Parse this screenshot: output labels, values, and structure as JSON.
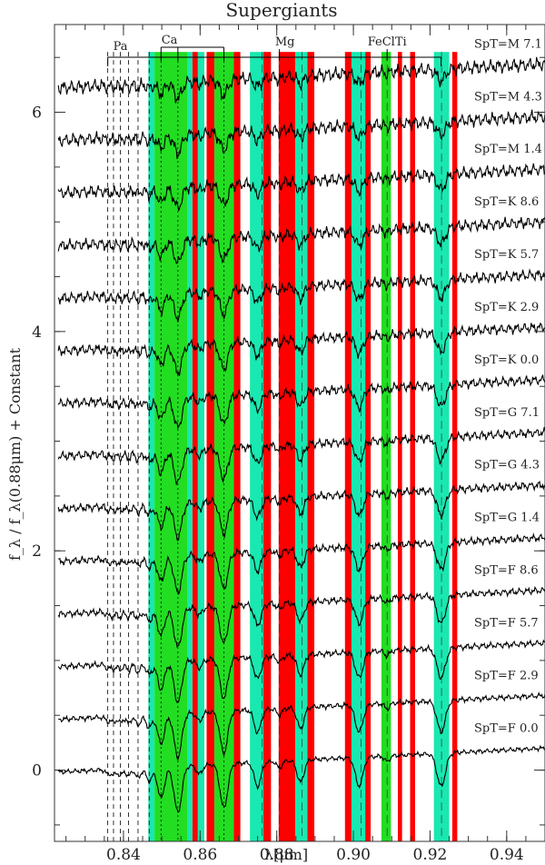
{
  "chart_data": {
    "type": "line",
    "title": "Supergiants",
    "xlabel": "λ[μm]",
    "ylabel": "f_λ / f_λ(0.88μm) + Constant",
    "xlim": [
      0.822,
      0.95
    ],
    "ylim": [
      -0.65,
      6.8
    ],
    "xticks": [
      0.84,
      0.86,
      0.88,
      0.9,
      0.92,
      0.94
    ],
    "yticks": [
      0,
      2,
      4,
      6
    ],
    "grid": false,
    "paschen_lines": [
      0.8359,
      0.8374,
      0.8392,
      0.8413,
      0.8438,
      0.8467
    ],
    "ca_lines": [
      0.8498,
      0.8542,
      0.8662
    ],
    "mg_line": 0.8807,
    "fe_cl_ti_line": 0.9088,
    "feature_labels": {
      "pa": "Pa",
      "ca": "Ca",
      "mg": "Mg",
      "fecliti": "FeClTi"
    },
    "green_bands": [
      [
        0.8481,
        0.8567
      ],
      [
        0.8637,
        0.8688
      ],
      [
        0.9073,
        0.9098
      ]
    ],
    "cyan_bands": [
      [
        0.8465,
        0.8481
      ],
      [
        0.8567,
        0.858
      ],
      [
        0.8594,
        0.8611
      ],
      [
        0.873,
        0.8765
      ],
      [
        0.8848,
        0.888
      ],
      [
        0.8995,
        0.9031
      ],
      [
        0.921,
        0.925
      ]
    ],
    "red_bands": [
      [
        0.858,
        0.8594
      ],
      [
        0.8617,
        0.8637
      ],
      [
        0.8688,
        0.8705
      ],
      [
        0.8765,
        0.8785
      ],
      [
        0.8805,
        0.8848
      ],
      [
        0.888,
        0.8898
      ],
      [
        0.8978,
        0.8995
      ],
      [
        0.9031,
        0.9045
      ],
      [
        0.9116,
        0.9127
      ],
      [
        0.9148,
        0.9161
      ],
      [
        0.9258,
        0.9271
      ]
    ],
    "dash_lines": [
      0.8762,
      0.8866,
      0.902,
      0.923
    ],
    "series": [
      {
        "name": "SpT=F 0.0",
        "offset": 0.0,
        "depth": 1.0
      },
      {
        "name": "SpT=F 2.9",
        "offset": 0.48,
        "depth": 0.95
      },
      {
        "name": "SpT=F 5.7",
        "offset": 0.96,
        "depth": 0.9
      },
      {
        "name": "SpT=F 8.6",
        "offset": 1.44,
        "depth": 0.85
      },
      {
        "name": "SpT=G 1.4",
        "offset": 1.92,
        "depth": 0.8
      },
      {
        "name": "SpT=G 4.3",
        "offset": 2.4,
        "depth": 0.75
      },
      {
        "name": "SpT=G 7.1",
        "offset": 2.88,
        "depth": 0.7
      },
      {
        "name": "SpT=K 0.0",
        "offset": 3.36,
        "depth": 0.65
      },
      {
        "name": "SpT=K 2.9",
        "offset": 3.84,
        "depth": 0.6
      },
      {
        "name": "SpT=K 5.7",
        "offset": 4.32,
        "depth": 0.55
      },
      {
        "name": "SpT=K 8.6",
        "offset": 4.8,
        "depth": 0.5
      },
      {
        "name": "SpT=M 1.4",
        "offset": 5.28,
        "depth": 0.45
      },
      {
        "name": "SpT=M 4.3",
        "offset": 5.76,
        "depth": 0.4
      },
      {
        "name": "SpT=M 7.1",
        "offset": 6.24,
        "depth": 0.35
      }
    ],
    "colors": {
      "green": "#22dd22",
      "cyan": "#19e8b0",
      "red": "#ff0000",
      "line": "#000000"
    }
  }
}
